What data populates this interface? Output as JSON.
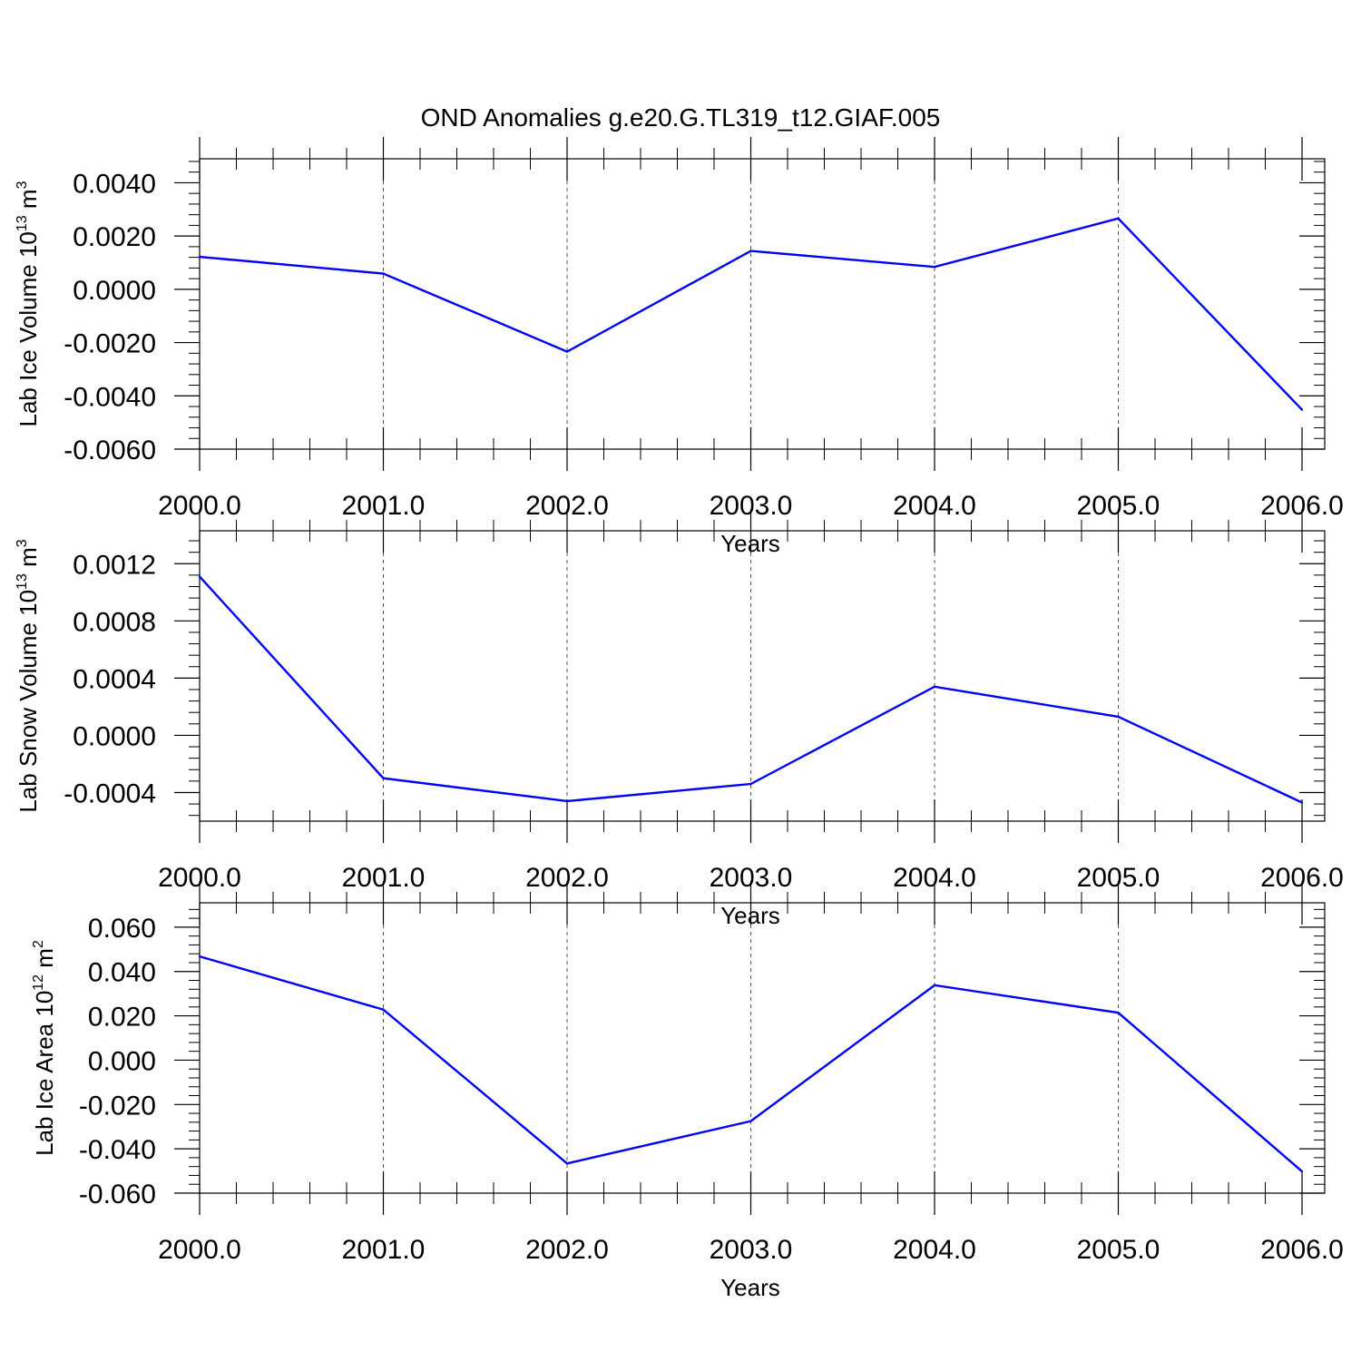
{
  "figure": {
    "title": "OND Anomalies g.e20.G.TL319_t12.GIAF.005"
  },
  "chart_data": [
    {
      "type": "line",
      "title": "",
      "xlabel": "Years",
      "ylabel_parts": [
        "Lab Ice Volume 10",
        "13",
        " m",
        "3"
      ],
      "x": [
        2000,
        2001,
        2002,
        2003,
        2004,
        2005,
        2006
      ],
      "xlim": [
        2000,
        2006
      ],
      "xtick_labels": [
        "2000.0",
        "2001.0",
        "2002.0",
        "2003.0",
        "2004.0",
        "2005.0",
        "2006.0"
      ],
      "ylim": [
        -0.006,
        0.0049
      ],
      "yticks": [
        0.004,
        0.002,
        0.0,
        -0.002,
        -0.004,
        -0.006
      ],
      "ytick_labels": [
        "0.0040",
        "0.0020",
        "0.0000",
        "-0.0020",
        "-0.0040",
        "-0.0060"
      ],
      "grid": "vertical dashed at major x ticks",
      "series": [
        {
          "values": [
            0.00122,
            0.00059,
            -0.00234,
            0.00144,
            0.00084,
            0.00266,
            -0.00452
          ],
          "color": "#0000ff"
        }
      ]
    },
    {
      "type": "line",
      "title": "",
      "xlabel": "Years",
      "ylabel_parts": [
        "Lab Snow Volume 10",
        "13",
        " m",
        "3"
      ],
      "x": [
        2000,
        2001,
        2002,
        2003,
        2004,
        2005,
        2006
      ],
      "xlim": [
        2000,
        2006
      ],
      "xtick_labels": [
        "2000.0",
        "2001.0",
        "2002.0",
        "2003.0",
        "2004.0",
        "2005.0",
        "2006.0"
      ],
      "ylim": [
        -0.0006,
        0.00143
      ],
      "yticks": [
        0.0012,
        0.0008,
        0.0004,
        0.0,
        -0.0004
      ],
      "ytick_labels": [
        "0.0012",
        "0.0008",
        "0.0004",
        "0.0000",
        "-0.0004"
      ],
      "grid": "vertical dashed at major x ticks",
      "series": [
        {
          "values": [
            0.00111,
            -0.0003,
            -0.00046,
            -0.00034,
            0.00034,
            0.00013,
            -0.00047
          ],
          "color": "#0000ff"
        }
      ]
    },
    {
      "type": "line",
      "title": "",
      "xlabel": "Years",
      "ylabel_parts": [
        "Lab Ice Area 10",
        "12",
        " m",
        "2"
      ],
      "x": [
        2000,
        2001,
        2002,
        2003,
        2004,
        2005,
        2006
      ],
      "xlim": [
        2000,
        2006
      ],
      "xtick_labels": [
        "2000.0",
        "2001.0",
        "2002.0",
        "2003.0",
        "2004.0",
        "2005.0",
        "2006.0"
      ],
      "ylim": [
        -0.06,
        0.071
      ],
      "yticks": [
        0.06,
        0.04,
        0.02,
        0.0,
        -0.02,
        -0.04,
        -0.06
      ],
      "ytick_labels": [
        "0.060",
        "0.040",
        "0.020",
        "0.000",
        "-0.020",
        "-0.040",
        "-0.060"
      ],
      "grid": "vertical dashed at major x ticks",
      "series": [
        {
          "values": [
            0.0468,
            0.0228,
            -0.0466,
            -0.0275,
            0.0338,
            0.0214,
            -0.0502
          ],
          "color": "#0000ff"
        }
      ]
    }
  ]
}
